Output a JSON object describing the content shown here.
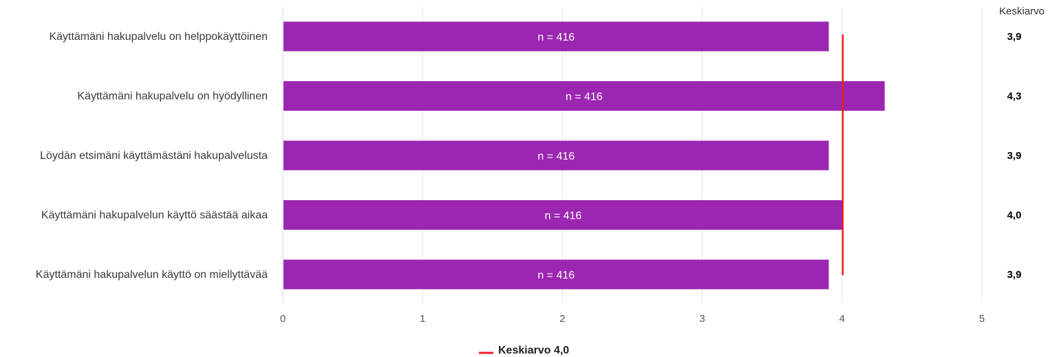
{
  "chart_data": {
    "type": "bar",
    "orientation": "horizontal",
    "categories": [
      "Käyttämäni hakupalvelu on helppokäyttöinen",
      "Käyttämäni hakupalvelu on hyödyllinen",
      "Löydän etsimäni käyttämästäni hakupalvelusta",
      "Käyttämäni hakupalvelun käyttö säästää aikaa",
      "Käyttämäni hakupalvelun käyttö on miellyttävää"
    ],
    "values": [
      3.9,
      4.3,
      3.9,
      4.0,
      3.9
    ],
    "bar_labels": [
      "n = 416",
      "n = 416",
      "n = 416",
      "n = 416",
      "n = 416"
    ],
    "mean_column_header": "Keskiarvo",
    "mean_column_values": [
      "3,9",
      "4,3",
      "3,9",
      "4,0",
      "3,9"
    ],
    "reference_line": {
      "value": 4.0,
      "label": "Keskiarvo 4,0",
      "color": "#ee1c25"
    },
    "xlim": [
      0,
      5
    ],
    "xticks": [
      "0",
      "1",
      "2",
      "3",
      "4",
      "5"
    ],
    "bar_color": "#9b27b0",
    "grid": true,
    "legend_position": "bottom-center",
    "title": "",
    "xlabel": "",
    "ylabel": ""
  }
}
